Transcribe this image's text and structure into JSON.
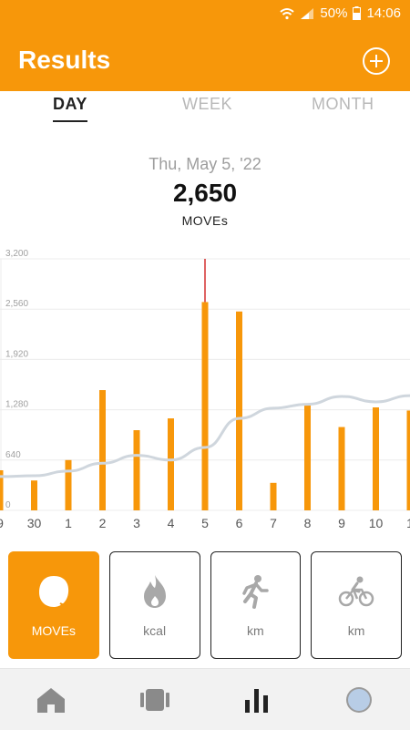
{
  "status": {
    "battery_percent": "50%",
    "time": "14:06"
  },
  "header": {
    "title": "Results"
  },
  "tabs": [
    {
      "label": "DAY",
      "active": true
    },
    {
      "label": "WEEK",
      "active": false
    },
    {
      "label": "MONTH",
      "active": false
    }
  ],
  "summary": {
    "date": "Thu, May 5, '22",
    "value": "2,650",
    "unit": "MOVEs"
  },
  "chart_data": {
    "type": "bar",
    "categories": [
      "9",
      "30",
      "1",
      "2",
      "3",
      "4",
      "5",
      "6",
      "7",
      "8",
      "9",
      "10",
      "1"
    ],
    "values": [
      510,
      380,
      640,
      1530,
      1020,
      1170,
      2650,
      2530,
      350,
      1340,
      1060,
      1310,
      1270
    ],
    "trend": [
      430,
      440,
      500,
      600,
      700,
      640,
      800,
      1170,
      1300,
      1350,
      1450,
      1380,
      1460
    ],
    "yticks": [
      "0",
      "640",
      "1,280",
      "1,920",
      "2,560",
      "3,200"
    ],
    "ylim": [
      0,
      3200
    ],
    "highlight_index": 6,
    "colors": {
      "bar": "#f7970a",
      "trend": "#cfd6dd",
      "highlight_line": "#d32f2f"
    }
  },
  "metrics": [
    {
      "label": "MOVEs",
      "icon": "move-blob-icon",
      "active": true
    },
    {
      "label": "kcal",
      "icon": "flame-icon",
      "active": false
    },
    {
      "label": "km",
      "icon": "running-person-icon",
      "active": false
    },
    {
      "label": "km",
      "icon": "bicycle-icon",
      "active": false
    }
  ],
  "nav": [
    {
      "icon": "home-icon"
    },
    {
      "icon": "device-icon"
    },
    {
      "icon": "bar-chart-icon",
      "active": true
    },
    {
      "icon": "profile-avatar-icon"
    }
  ],
  "colors": {
    "accent": "#f7970a"
  }
}
